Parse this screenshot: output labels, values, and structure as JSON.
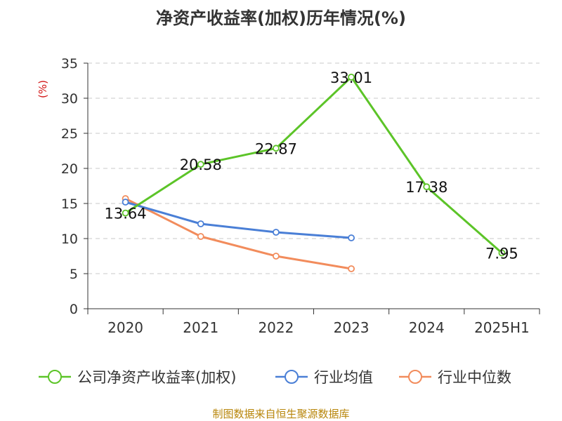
{
  "chart_data": {
    "type": "line",
    "title": "净资产收益率(加权)历年情况(%)",
    "ylabel": "(%)",
    "categories": [
      "2020",
      "2021",
      "2022",
      "2023",
      "2024",
      "2025H1"
    ],
    "ylim": [
      0,
      35
    ],
    "yticks": [
      0,
      5,
      10,
      15,
      20,
      25,
      30,
      35
    ],
    "grid": true,
    "legend_position": "bottom",
    "series": [
      {
        "name": "公司净资产收益率(加权)",
        "color": "#5cc428",
        "values": [
          13.64,
          20.58,
          22.87,
          33.01,
          17.38,
          7.95
        ],
        "labels": [
          "13.64",
          "20.58",
          "22.87",
          "33.01",
          "17.38",
          "7.95"
        ]
      },
      {
        "name": "行业均值",
        "color": "#4a7fd6",
        "values": [
          15.2,
          12.1,
          10.9,
          10.1,
          null,
          null
        ]
      },
      {
        "name": "行业中位数",
        "color": "#f28c5c",
        "values": [
          15.7,
          10.3,
          7.5,
          5.7,
          null,
          null
        ]
      }
    ],
    "source": "制图数据来自恒生聚源数据库"
  }
}
